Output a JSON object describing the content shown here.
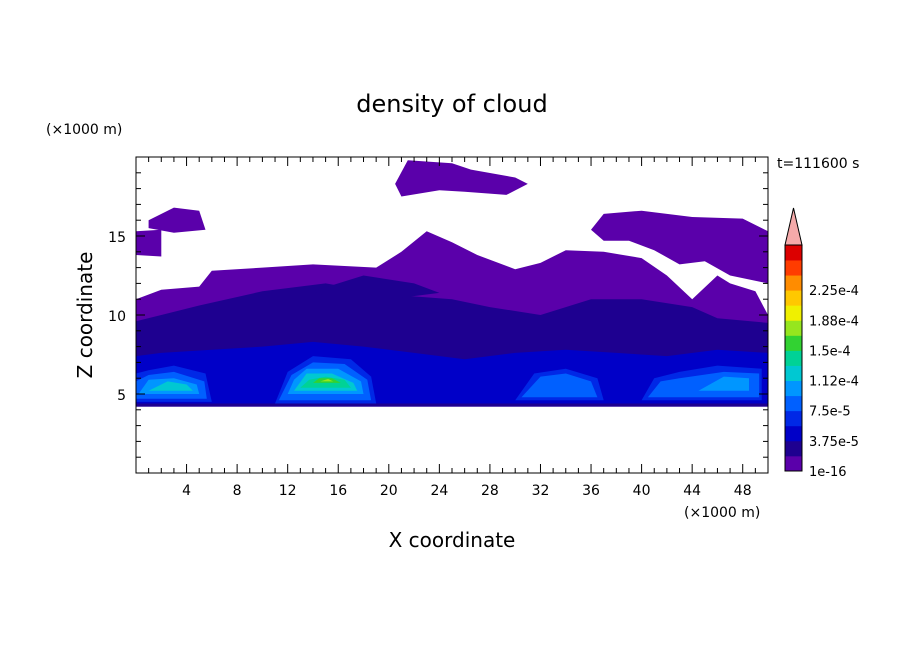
{
  "chart_data": {
    "type": "heatmap",
    "title": "density of cloud",
    "xlabel": "X coordinate",
    "ylabel": "Z coordinate",
    "x_unit": "(×1000 m)",
    "y_unit": "(×1000 m)",
    "time_label": "t=111600 s",
    "xlim": [
      0,
      50
    ],
    "ylim": [
      0,
      20
    ],
    "x_ticks": [
      4,
      8,
      12,
      16,
      20,
      24,
      28,
      32,
      36,
      40,
      44,
      48
    ],
    "y_ticks": [
      5,
      10,
      15
    ],
    "colorbar": {
      "levels": [
        1e-16,
        1.875e-05,
        3.75e-05,
        5.625e-05,
        7.5e-05,
        9.375e-05,
        0.0001125,
        0.00013125,
        0.00015,
        0.00016875,
        0.0001875,
        0.00020625,
        0.000225,
        0.00024375
      ],
      "tick_labels": [
        "1e-16",
        "3.75e-5",
        "7.5e-5",
        "1.12e-4",
        "1.5e-4",
        "1.88e-4",
        "2.25e-4"
      ],
      "colors": [
        "#5a00aa",
        "#1e0090",
        "#0000c8",
        "#0028e6",
        "#0060ff",
        "#0096ff",
        "#00c8d2",
        "#00d296",
        "#32d232",
        "#96e61e",
        "#f0f000",
        "#ffc800",
        "#ff8c00",
        "#ff3c00",
        "#dc0000"
      ],
      "overflow_color": "#f5aaaa"
    },
    "regions": [
      {
        "level": 0,
        "poly": [
          [
            0,
            4.2
          ],
          [
            50,
            4.2
          ],
          [
            50,
            10
          ],
          [
            49,
            11.5
          ],
          [
            47,
            12
          ],
          [
            46,
            12.5
          ],
          [
            44,
            11
          ],
          [
            42,
            12.5
          ],
          [
            40,
            13.6
          ],
          [
            37,
            14
          ],
          [
            34,
            14.1
          ],
          [
            32,
            13.3
          ],
          [
            30,
            12.9
          ],
          [
            27,
            13.8
          ],
          [
            25,
            14.6
          ],
          [
            23,
            15.3
          ],
          [
            21,
            14
          ],
          [
            19,
            13
          ],
          [
            14,
            13.2
          ],
          [
            10,
            13
          ],
          [
            6,
            12.8
          ],
          [
            5,
            11.8
          ],
          [
            2,
            11.6
          ],
          [
            0,
            11
          ]
        ]
      },
      {
        "level": 0,
        "poly": [
          [
            0,
            13.8
          ],
          [
            2,
            13.7
          ],
          [
            2,
            15.4
          ],
          [
            0,
            15.3
          ]
        ]
      },
      {
        "level": 0,
        "poly": [
          [
            1,
            16
          ],
          [
            3,
            16.8
          ],
          [
            5,
            16.6
          ],
          [
            5.5,
            15.4
          ],
          [
            3,
            15.2
          ],
          [
            1,
            15.5
          ]
        ]
      },
      {
        "level": 0,
        "poly": [
          [
            20.5,
            18.3
          ],
          [
            21.5,
            19.8
          ],
          [
            25,
            19.6
          ],
          [
            26.5,
            19.2
          ],
          [
            30,
            18.7
          ],
          [
            31,
            18.3
          ],
          [
            29.3,
            17.6
          ],
          [
            26,
            17.8
          ],
          [
            24,
            17.9
          ],
          [
            21,
            17.5
          ]
        ]
      },
      {
        "level": 0,
        "poly": [
          [
            36,
            15.4
          ],
          [
            37,
            16.4
          ],
          [
            40,
            16.6
          ],
          [
            44,
            16.2
          ],
          [
            48,
            16.1
          ],
          [
            50,
            15.3
          ],
          [
            50,
            12
          ],
          [
            47,
            12.5
          ],
          [
            45,
            13.4
          ],
          [
            43,
            13.2
          ],
          [
            41,
            14.1
          ],
          [
            39,
            14.7
          ],
          [
            37,
            14.7
          ]
        ]
      },
      {
        "level": 1,
        "poly": [
          [
            0,
            4.2
          ],
          [
            50,
            4.2
          ],
          [
            50,
            9.5
          ],
          [
            46,
            9.8
          ],
          [
            44,
            10.5
          ],
          [
            40,
            11
          ],
          [
            36,
            11
          ],
          [
            32,
            10
          ],
          [
            28,
            10.5
          ],
          [
            25,
            11
          ],
          [
            20,
            11.3
          ],
          [
            15,
            12
          ],
          [
            10,
            11.5
          ],
          [
            5,
            10.6
          ],
          [
            2,
            10
          ],
          [
            0,
            9.6
          ]
        ]
      },
      {
        "level": 1,
        "poly": [
          [
            14,
            11.5
          ],
          [
            18,
            12.5
          ],
          [
            22,
            12
          ],
          [
            24,
            11.4
          ],
          [
            20,
            11
          ],
          [
            15,
            11.2
          ]
        ]
      },
      {
        "level": 2,
        "poly": [
          [
            0,
            4.4
          ],
          [
            50,
            4.4
          ],
          [
            50,
            7.6
          ],
          [
            46,
            7.8
          ],
          [
            42,
            7.4
          ],
          [
            38,
            7.6
          ],
          [
            34,
            7.8
          ],
          [
            30,
            7.6
          ],
          [
            26,
            7.2
          ],
          [
            22,
            7.6
          ],
          [
            18,
            8
          ],
          [
            14,
            8.3
          ],
          [
            10,
            8
          ],
          [
            6,
            7.8
          ],
          [
            2,
            7.6
          ],
          [
            0,
            7.4
          ]
        ]
      },
      {
        "level": 3,
        "poly": [
          [
            0,
            4.5
          ],
          [
            6,
            4.5
          ],
          [
            5.5,
            6.3
          ],
          [
            3,
            6.8
          ],
          [
            1,
            6.5
          ],
          [
            0,
            6.3
          ]
        ]
      },
      {
        "level": 3,
        "poly": [
          [
            11,
            4.4
          ],
          [
            19,
            4.4
          ],
          [
            18.6,
            6.1
          ],
          [
            17,
            7.2
          ],
          [
            14,
            7.4
          ],
          [
            12,
            6.4
          ]
        ]
      },
      {
        "level": 3,
        "poly": [
          [
            30,
            4.6
          ],
          [
            37,
            4.6
          ],
          [
            36.5,
            6
          ],
          [
            34,
            6.6
          ],
          [
            31.5,
            6.3
          ]
        ]
      },
      {
        "level": 3,
        "poly": [
          [
            40,
            4.6
          ],
          [
            49.5,
            4.6
          ],
          [
            49.5,
            6.6
          ],
          [
            46,
            6.8
          ],
          [
            43,
            6.4
          ],
          [
            41,
            6
          ]
        ]
      },
      {
        "level": 4,
        "poly": [
          [
            0,
            4.7
          ],
          [
            5.6,
            4.7
          ],
          [
            5.4,
            5.8
          ],
          [
            3,
            6.4
          ],
          [
            1,
            6.2
          ],
          [
            0,
            5.8
          ]
        ]
      },
      {
        "level": 4,
        "poly": [
          [
            11.3,
            4.6
          ],
          [
            18.6,
            4.6
          ],
          [
            18.3,
            5.9
          ],
          [
            16.5,
            6.9
          ],
          [
            14,
            7
          ],
          [
            12.3,
            6.2
          ]
        ]
      },
      {
        "level": 4,
        "poly": [
          [
            30.5,
            4.8
          ],
          [
            36.5,
            4.8
          ],
          [
            36,
            5.8
          ],
          [
            34,
            6.3
          ],
          [
            32,
            6.1
          ]
        ]
      },
      {
        "level": 4,
        "poly": [
          [
            40.5,
            4.8
          ],
          [
            49.3,
            4.8
          ],
          [
            49.3,
            6.3
          ],
          [
            46.5,
            6.4
          ],
          [
            43,
            6
          ],
          [
            41.5,
            5.8
          ]
        ]
      },
      {
        "level": 5,
        "poly": [
          [
            0.2,
            5
          ],
          [
            5,
            5
          ],
          [
            4.8,
            5.6
          ],
          [
            3,
            6
          ],
          [
            1,
            5.9
          ]
        ]
      },
      {
        "level": 5,
        "poly": [
          [
            12,
            5
          ],
          [
            18,
            5
          ],
          [
            17.8,
            5.8
          ],
          [
            16,
            6.6
          ],
          [
            13.5,
            6.6
          ],
          [
            12.5,
            5.9
          ]
        ]
      },
      {
        "level": 5,
        "poly": [
          [
            44.5,
            5.2
          ],
          [
            48.5,
            5.2
          ],
          [
            48.5,
            6
          ],
          [
            46.5,
            6.1
          ]
        ]
      },
      {
        "level": 6,
        "poly": [
          [
            1,
            5.2
          ],
          [
            4.5,
            5.2
          ],
          [
            4,
            5.6
          ],
          [
            2.5,
            5.8
          ]
        ]
      },
      {
        "level": 6,
        "poly": [
          [
            12.5,
            5.2
          ],
          [
            17.5,
            5.2
          ],
          [
            17.2,
            5.7
          ],
          [
            15.5,
            6.3
          ],
          [
            13.5,
            6.3
          ]
        ]
      },
      {
        "level": 7,
        "poly": [
          [
            13,
            5.4
          ],
          [
            17,
            5.4
          ],
          [
            16.5,
            5.9
          ],
          [
            15,
            6.1
          ],
          [
            13.7,
            5.9
          ]
        ]
      },
      {
        "level": 8,
        "poly": [
          [
            14,
            5.7
          ],
          [
            16.2,
            5.7
          ],
          [
            15.5,
            6.0
          ],
          [
            14.5,
            6.0
          ]
        ]
      },
      {
        "level": 9,
        "poly": [
          [
            14.6,
            5.8
          ],
          [
            15.6,
            5.8
          ],
          [
            15.2,
            5.95
          ]
        ]
      }
    ]
  }
}
